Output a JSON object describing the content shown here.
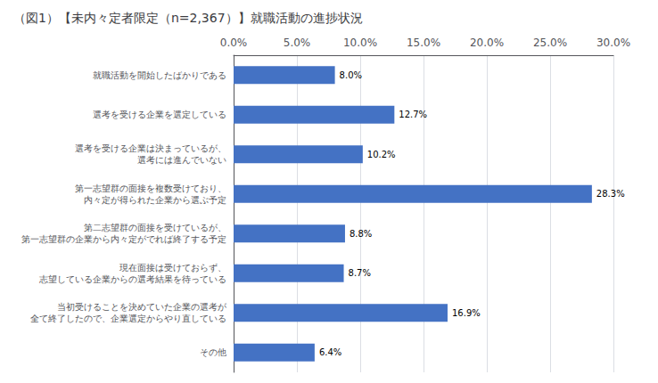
{
  "chart_data": {
    "type": "bar",
    "orientation": "horizontal",
    "title": "（図1）【未内々定者限定（n=2,367）】就職活動の進捗状況",
    "categories": [
      "就職活動を開始したばかりである",
      "選考を受ける企業を選定している",
      "選考を受ける企業は決まっているが、\n選考には進んでいない",
      "第一志望群の面接を複数受けており、\n内々定が得られた企業から選ぶ予定",
      "第二志望群の面接を受けているが、\n第一志望群の企業から内々定がでれば終了する予定",
      "現在面接は受けておらず、\n志望している企業からの選考結果を待っている",
      "当初受けることを決めていた企業の選考が\n全て終了したので、企業選定からやり直している",
      "その他"
    ],
    "values": [
      8.0,
      12.7,
      10.2,
      28.3,
      8.8,
      8.7,
      16.9,
      6.4
    ],
    "value_labels": [
      "8.0%",
      "12.7%",
      "10.2%",
      "28.3%",
      "8.8%",
      "8.7%",
      "16.9%",
      "6.4%"
    ],
    "data_labels": true,
    "color": "#4472c4",
    "xlim": [
      0,
      30
    ],
    "xticks": [
      {
        "value": 0,
        "label": "0.0%"
      },
      {
        "value": 5,
        "label": "5.0%"
      },
      {
        "value": 10,
        "label": "10.0%"
      },
      {
        "value": 15,
        "label": "15.0%"
      },
      {
        "value": 20,
        "label": "20.0%"
      },
      {
        "value": 25,
        "label": "25.0%"
      },
      {
        "value": 30,
        "label": "30.0%"
      }
    ],
    "grid": true
  }
}
